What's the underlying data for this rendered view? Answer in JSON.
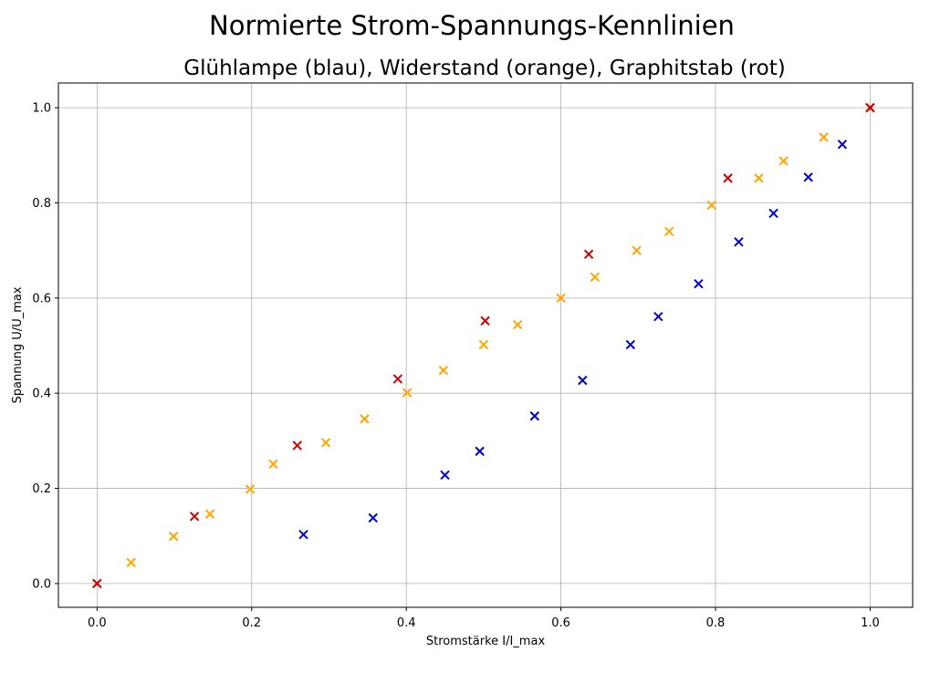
{
  "chart_data": {
    "type": "scatter",
    "suptitle": "Normierte Strom-Spannungs-Kennlinien",
    "title": "Glühlampe (blau), Widerstand (orange), Graphitstab (rot)",
    "xlabel": "Stromstärke I/I_max",
    "ylabel": "Spannung U/U_max",
    "xlim": [
      -0.05,
      1.055
    ],
    "ylim": [
      -0.05,
      1.052
    ],
    "xticks": [
      "0.0",
      "0.2",
      "0.4",
      "0.6",
      "0.8",
      "1.0"
    ],
    "yticks": [
      "0.0",
      "0.2",
      "0.4",
      "0.6",
      "0.8",
      "1.0"
    ],
    "xtick_values": [
      0.0,
      0.2,
      0.4,
      0.6,
      0.8,
      1.0
    ],
    "ytick_values": [
      0.0,
      0.2,
      0.4,
      0.6,
      0.8,
      1.0
    ],
    "grid": true,
    "marker": "x",
    "series": [
      {
        "color": "#0000cc",
        "points": [
          [
            0.0,
            0.0
          ],
          [
            0.267,
            0.103
          ],
          [
            0.357,
            0.138
          ],
          [
            0.45,
            0.228
          ],
          [
            0.495,
            0.278
          ],
          [
            0.566,
            0.352
          ],
          [
            0.628,
            0.427
          ],
          [
            0.69,
            0.502
          ],
          [
            0.726,
            0.561
          ],
          [
            0.778,
            0.63
          ],
          [
            0.83,
            0.718
          ],
          [
            0.875,
            0.778
          ],
          [
            0.92,
            0.854
          ],
          [
            0.964,
            0.923
          ],
          [
            1.0,
            1.0
          ]
        ]
      },
      {
        "color": "#ffa500",
        "points": [
          [
            0.0,
            0.0
          ],
          [
            0.044,
            0.044
          ],
          [
            0.099,
            0.099
          ],
          [
            0.146,
            0.146
          ],
          [
            0.198,
            0.198
          ],
          [
            0.228,
            0.251
          ],
          [
            0.296,
            0.296
          ],
          [
            0.346,
            0.346
          ],
          [
            0.401,
            0.401
          ],
          [
            0.448,
            0.448
          ],
          [
            0.5,
            0.502
          ],
          [
            0.544,
            0.544
          ],
          [
            0.6,
            0.6
          ],
          [
            0.644,
            0.644
          ],
          [
            0.698,
            0.7
          ],
          [
            0.74,
            0.74
          ],
          [
            0.795,
            0.795
          ],
          [
            0.856,
            0.852
          ],
          [
            0.888,
            0.888
          ],
          [
            0.94,
            0.938
          ],
          [
            1.0,
            1.0
          ]
        ]
      },
      {
        "color": "#cc0000",
        "points": [
          [
            0.0,
            0.0
          ],
          [
            0.126,
            0.141
          ],
          [
            0.259,
            0.29
          ],
          [
            0.389,
            0.43
          ],
          [
            0.502,
            0.552
          ],
          [
            0.636,
            0.692
          ],
          [
            0.816,
            0.852
          ],
          [
            1.0,
            1.0
          ]
        ]
      }
    ]
  }
}
